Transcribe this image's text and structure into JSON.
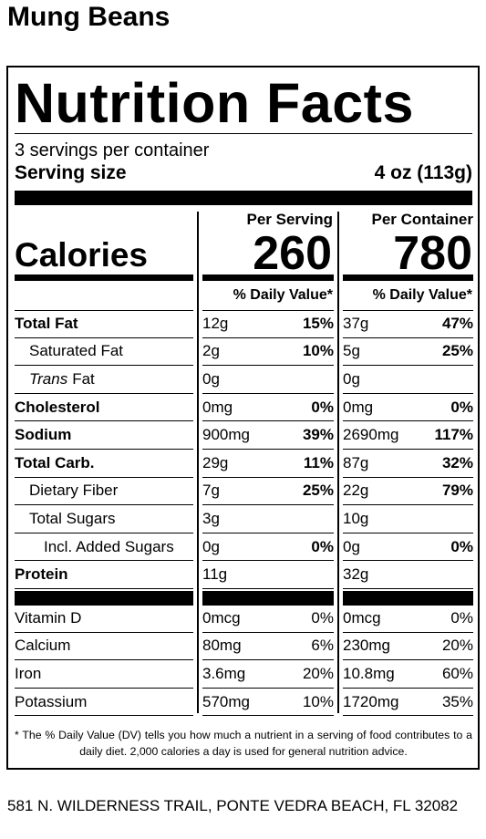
{
  "product": "Mung Beans",
  "label": {
    "title": "Nutrition Facts",
    "servings": "3 servings per container",
    "serving_size_label": "Serving size",
    "serving_size": "4 oz (113g)",
    "per_serving": "Per Serving",
    "per_container": "Per Container",
    "calories_label": "Calories",
    "calories_serving": "260",
    "calories_container": "780",
    "dv_header": "% Daily Value*",
    "nutrients": [
      {
        "name": "Total Fat",
        "serving_amount": "12g",
        "serving_dv": "15%",
        "container_amount": "37g",
        "container_dv": "47%"
      },
      {
        "name": "Saturated Fat",
        "serving_amount": "2g",
        "serving_dv": "10%",
        "container_amount": "5g",
        "container_dv": "25%"
      },
      {
        "prefix": "Trans",
        "name": "Fat",
        "serving_amount": "0g",
        "container_amount": "0g"
      },
      {
        "name": "Cholesterol",
        "serving_amount": "0mg",
        "serving_dv": "0%",
        "container_amount": "0mg",
        "container_dv": "0%"
      },
      {
        "name": "Sodium",
        "serving_amount": "900mg",
        "serving_dv": "39%",
        "container_amount": "2690mg",
        "container_dv": "117%"
      },
      {
        "name": "Total Carb.",
        "serving_amount": "29g",
        "serving_dv": "11%",
        "container_amount": "87g",
        "container_dv": "32%"
      },
      {
        "name": "Dietary Fiber",
        "serving_amount": "7g",
        "serving_dv": "25%",
        "container_amount": "22g",
        "container_dv": "79%"
      },
      {
        "name": "Total Sugars",
        "serving_amount": "3g",
        "container_amount": "10g"
      },
      {
        "name": "Incl. Added Sugars",
        "serving_amount": "0g",
        "serving_dv": "0%",
        "container_amount": "0g",
        "container_dv": "0%"
      },
      {
        "name": "Protein",
        "serving_amount": "11g",
        "container_amount": "32g"
      }
    ],
    "vitamins": [
      {
        "name": "Vitamin D",
        "serving_amount": "0mcg",
        "serving_dv": "0%",
        "container_amount": "0mcg",
        "container_dv": "0%"
      },
      {
        "name": "Calcium",
        "serving_amount": "80mg",
        "serving_dv": "6%",
        "container_amount": "230mg",
        "container_dv": "20%"
      },
      {
        "name": "Iron",
        "serving_amount": "3.6mg",
        "serving_dv": "20%",
        "container_amount": "10.8mg",
        "container_dv": "60%"
      },
      {
        "name": "Potassium",
        "serving_amount": "570mg",
        "serving_dv": "10%",
        "container_amount": "1720mg",
        "container_dv": "35%"
      }
    ],
    "footnote": "* The % Daily Value (DV) tells you how much a nutrient in a serving of food contributes to a daily diet. 2,000 calories a day is used for general nutrition advice."
  },
  "address": "581 N. WILDERNESS TRAIL, PONTE VEDRA BEACH, FL 32082"
}
